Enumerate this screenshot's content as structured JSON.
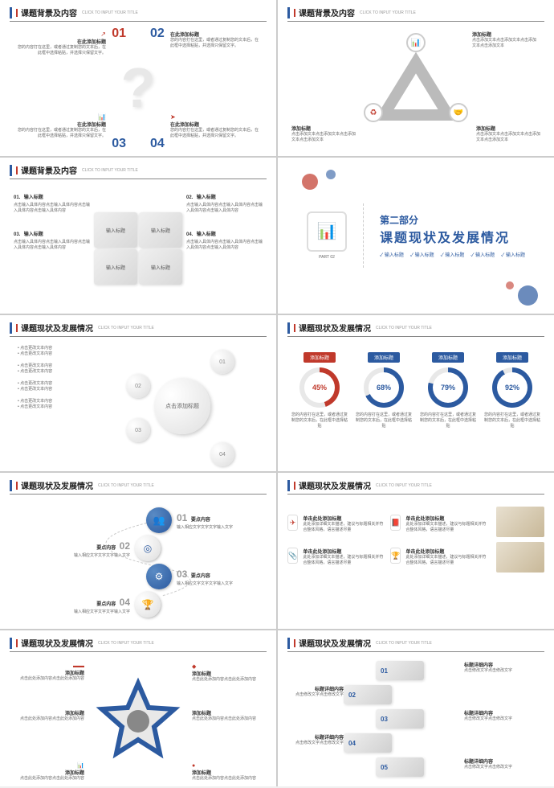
{
  "colors": {
    "blue": "#2c5aa0",
    "red": "#c0392b",
    "grey": "#999",
    "lightgrey": "#e0e0e0",
    "bg": "#ffffff"
  },
  "header": {
    "title1": "课题背景及内容",
    "title2": "课题现状及发展情况",
    "subtitle": "CLICK TO INPUT YOUR TITLE"
  },
  "s1": {
    "n": [
      "01",
      "02",
      "03",
      "04"
    ],
    "h": "在此添加标题",
    "t": "您的内容打在这里，或者通过复制您的文本后，在此框中选择粘贴，并选择只保留文字。"
  },
  "s2": {
    "h": "添加标题",
    "t": "点击添加文本点击添加文本点击添加文本点击添加文本"
  },
  "s3": {
    "n": [
      "01.",
      "02.",
      "03.",
      "04."
    ],
    "h": "输入标题",
    "t": "点击输入具体内容点击输入具体内容点击输入具体内容点击输入具体内容",
    "pc": "输入标题"
  },
  "s4": {
    "part": "PART 02",
    "p1": "第二部分",
    "p2": "课题现状及发展情况",
    "tag": "输入标题"
  },
  "s5": {
    "center": "点击添加标题",
    "n": [
      "01",
      "02",
      "03",
      "04"
    ],
    "h": "点击更改文本内容",
    "t": "点击更改文本内容"
  },
  "s6": {
    "items": [
      {
        "lbl": "添加标题",
        "pct": 45,
        "c": "#c0392b"
      },
      {
        "lbl": "添加标题",
        "pct": 68,
        "c": "#2c5aa0"
      },
      {
        "lbl": "添加标题",
        "pct": 79,
        "c": "#2c5aa0"
      },
      {
        "lbl": "添加标题",
        "pct": 92,
        "c": "#2c5aa0"
      }
    ],
    "t": "您的内容打在这里，或者通过复制您的文本后，在此框中选择粘贴"
  },
  "s7": {
    "n": [
      "01",
      "02",
      "03",
      "04"
    ],
    "h": "要点内容",
    "t": "输入相应文字文字文字输入文字"
  },
  "s8": {
    "h": "单击此处添加标题",
    "t": "此处添加详细文本描述，建议与标题相关并符合整体风格，语言描述尽量"
  },
  "s9": {
    "h": "添加标题",
    "t": "点击此处添加内容点击此处添加内容"
  },
  "s10": {
    "n": [
      "01",
      "02",
      "03",
      "04",
      "05"
    ],
    "h": "标题详细内容",
    "t": "点击修改文字点击修改文字"
  }
}
